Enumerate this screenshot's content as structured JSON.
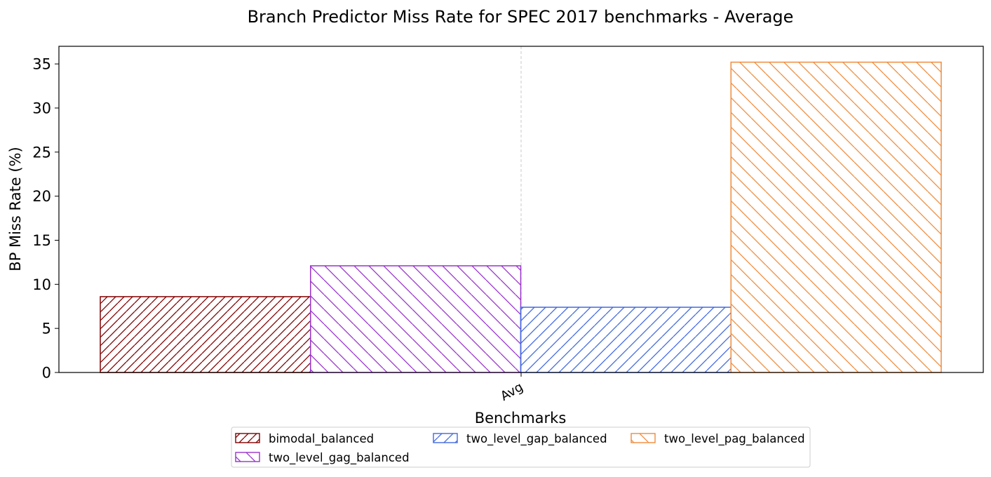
{
  "chart_data": {
    "type": "bar",
    "title": "Branch Predictor Miss Rate for SPEC 2017 benchmarks - Average",
    "xlabel": "Benchmarks",
    "ylabel": "BP Miss Rate (%)",
    "categories": [
      "Avg"
    ],
    "ylim": [
      0,
      37
    ],
    "yticks": [
      "0",
      "5",
      "10",
      "15",
      "20",
      "25",
      "30",
      "35"
    ],
    "grid": "vertical dashed at x tick",
    "legend_position": "bottom-center",
    "series": [
      {
        "name": "bimodal_balanced",
        "values": [
          8.6
        ],
        "color": "#800000",
        "hatch": "forward-dense"
      },
      {
        "name": "two_level_gag_balanced",
        "values": [
          12.1
        ],
        "color": "#9932CC",
        "hatch": "backward"
      },
      {
        "name": "two_level_gap_balanced",
        "values": [
          7.4
        ],
        "color": "#4169E1",
        "hatch": "forward"
      },
      {
        "name": "two_level_pag_balanced",
        "values": [
          35.2
        ],
        "color": "#F08C3C",
        "hatch": "backward"
      }
    ]
  }
}
